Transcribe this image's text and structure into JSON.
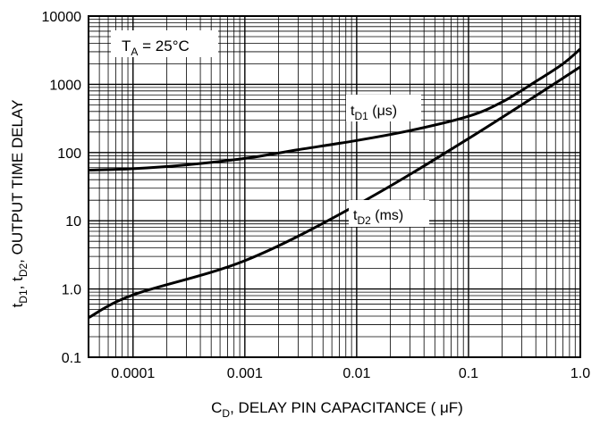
{
  "chart_data": {
    "type": "line",
    "x_scale": "log",
    "y_scale": "log",
    "xlim": [
      4e-05,
      1.0
    ],
    "ylim": [
      0.1,
      10000
    ],
    "grid": true,
    "x_ticks": [
      {
        "value": 0.0001,
        "label": "0.0001"
      },
      {
        "value": 0.001,
        "label": "0.001"
      },
      {
        "value": 0.01,
        "label": "0.01"
      },
      {
        "value": 0.1,
        "label": "0.1"
      },
      {
        "value": 1.0,
        "label": "1.0"
      }
    ],
    "y_ticks": [
      {
        "value": 0.1,
        "label": "0.1"
      },
      {
        "value": 1,
        "label": "1.0"
      },
      {
        "value": 10,
        "label": "10"
      },
      {
        "value": 100,
        "label": "100"
      },
      {
        "value": 1000,
        "label": "1000"
      },
      {
        "value": 10000,
        "label": "10000"
      }
    ],
    "xlabel": {
      "main": "C",
      "sub": "D",
      "rest": ", DELAY PIN CAPACITANCE ( ",
      "mu": "μ",
      "end": "F)"
    },
    "ylabel": {
      "t": "t",
      "sub1": "D1",
      "mid": ", t",
      "sub2": "D2",
      "rest": ", OUTPUT TIME DELAY"
    },
    "annotation": {
      "main": "T",
      "sub": "A",
      "rest": " = 25°C"
    },
    "series": [
      {
        "name": "tD1 (μs)",
        "label": {
          "main": "t",
          "sub": "D1",
          "rest": " (μs)"
        },
        "x": [
          4e-05,
          0.0001,
          0.0003,
          0.001,
          0.003,
          0.01,
          0.03,
          0.1,
          0.2,
          0.4,
          0.7,
          1.0
        ],
        "y": [
          55,
          58,
          66,
          82,
          110,
          150,
          210,
          340,
          550,
          1100,
          2000,
          3300
        ]
      },
      {
        "name": "tD2 (ms)",
        "label": {
          "main": "t",
          "sub": "D2",
          "rest": " (ms)"
        },
        "x": [
          4e-05,
          0.0001,
          0.001,
          0.01,
          0.1,
          1.0
        ],
        "y": [
          0.38,
          0.82,
          2.6,
          17,
          160,
          1800
        ]
      }
    ]
  }
}
